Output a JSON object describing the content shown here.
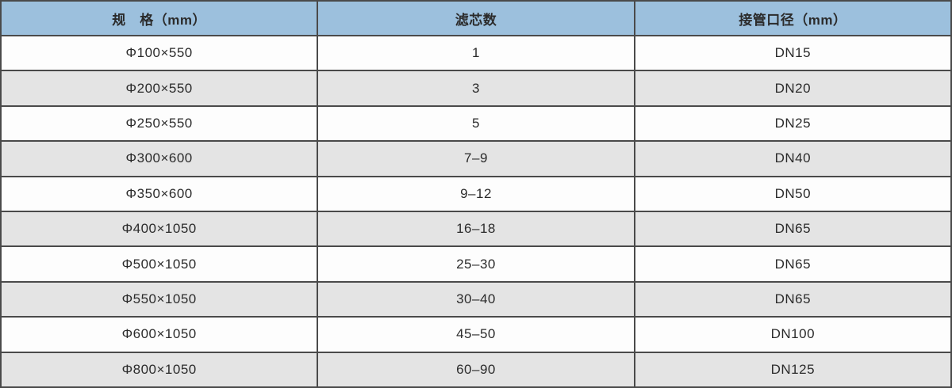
{
  "table": {
    "title": "filter-specification-table",
    "headers": [
      {
        "label": "规　格（mm）"
      },
      {
        "label": "滤芯数"
      },
      {
        "label": "接管口径（mm）"
      }
    ],
    "rows": [
      {
        "spec": "Φ100×550",
        "filter_count": "1",
        "pipe_diameter": "DN15"
      },
      {
        "spec": "Φ200×550",
        "filter_count": "3",
        "pipe_diameter": "DN20"
      },
      {
        "spec": "Φ250×550",
        "filter_count": "5",
        "pipe_diameter": "DN25"
      },
      {
        "spec": "Φ300×600",
        "filter_count": "7–9",
        "pipe_diameter": "DN40"
      },
      {
        "spec": "Φ350×600",
        "filter_count": "9–12",
        "pipe_diameter": "DN50"
      },
      {
        "spec": "Φ400×1050",
        "filter_count": "16–18",
        "pipe_diameter": "DN65"
      },
      {
        "spec": "Φ500×1050",
        "filter_count": "25–30",
        "pipe_diameter": "DN65"
      },
      {
        "spec": "Φ550×1050",
        "filter_count": "30–40",
        "pipe_diameter": "DN65"
      },
      {
        "spec": "Φ600×1050",
        "filter_count": "45–50",
        "pipe_diameter": "DN100"
      },
      {
        "spec": "Φ800×1050",
        "filter_count": "60–90",
        "pipe_diameter": "DN125"
      }
    ],
    "colors": {
      "header_bg": "#9cc0dd",
      "row_bg": "#fdfdfd",
      "row_alt_bg": "#e4e4e4",
      "border": "#4a4a4a",
      "text": "#2b2b2b"
    }
  }
}
